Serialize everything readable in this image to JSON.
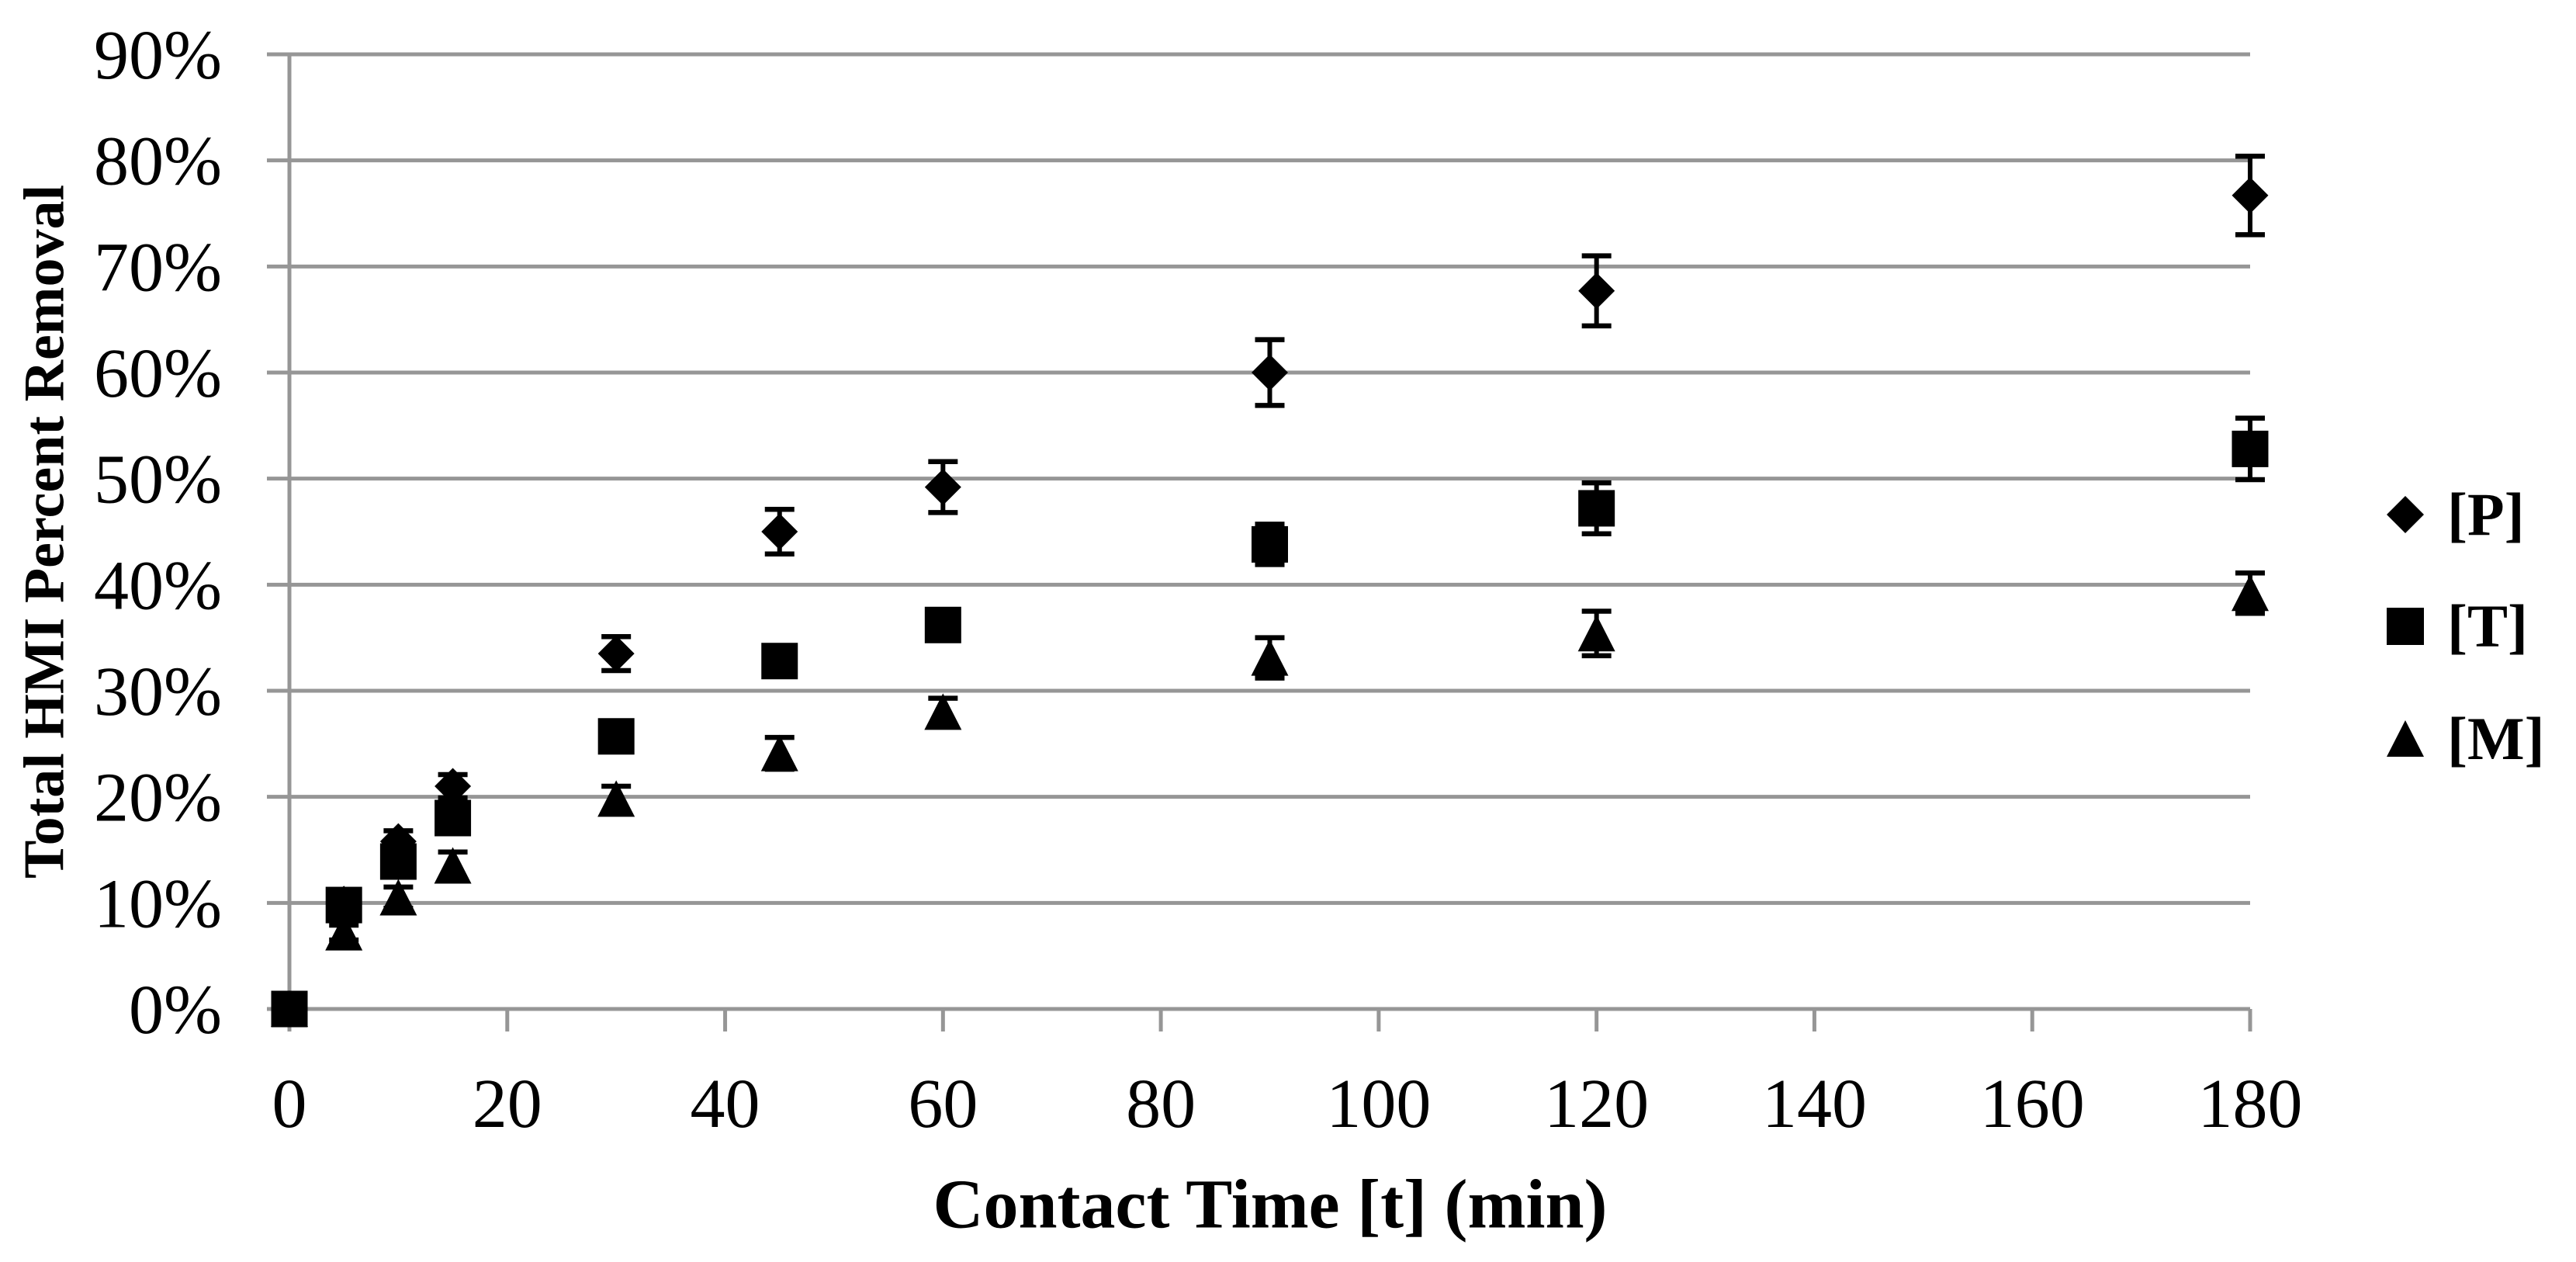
{
  "page": {
    "background": "#ffffff"
  },
  "chart_data": {
    "type": "scatter",
    "title": "",
    "xlabel": "Contact Time [t] (min)",
    "ylabel": "Total HMI Percent Removal",
    "xlim": [
      0,
      180
    ],
    "ylim_percent": [
      0,
      90
    ],
    "x_ticks": [
      0,
      20,
      40,
      60,
      80,
      100,
      120,
      140,
      160,
      180
    ],
    "y_ticks_percent": [
      0,
      10,
      20,
      30,
      40,
      50,
      60,
      70,
      80,
      90
    ],
    "y_tick_suffix": "%",
    "grid": "horizontal-only",
    "legend_position": "right",
    "colors": {
      "marker": "#000000",
      "text": "#000000",
      "grid": "#969696",
      "background": "#ffffff"
    },
    "x": [
      0,
      5,
      10,
      15,
      30,
      45,
      60,
      90,
      120,
      180
    ],
    "series": [
      {
        "name": "[P]",
        "marker": "diamond",
        "values_percent": [
          0,
          9.9,
          15.8,
          21,
          33.5,
          45,
          49.2,
          60,
          67.7,
          76.7
        ],
        "errors_percent": [
          0.5,
          0.8,
          1.0,
          1.1,
          1.6,
          2.1,
          2.4,
          3.1,
          3.3,
          3.7
        ]
      },
      {
        "name": "[T]",
        "marker": "square",
        "values_percent": [
          0,
          9.8,
          13.9,
          18,
          25.7,
          32.8,
          36.2,
          43.8,
          47.2,
          52.8
        ],
        "errors_percent": [
          0.5,
          0.8,
          1.0,
          1.3,
          1.0,
          1.0,
          1.0,
          1.9,
          2.4,
          2.9
        ]
      },
      {
        "name": "[M]",
        "marker": "triangle",
        "values_percent": [
          0,
          7.2,
          10.5,
          13.5,
          19.8,
          24.1,
          28,
          33.1,
          35.4,
          39.2
        ],
        "errors_percent": [
          0.3,
          0.7,
          1.0,
          1.3,
          1.2,
          1.5,
          1.3,
          1.9,
          2.1,
          1.9
        ]
      }
    ]
  }
}
